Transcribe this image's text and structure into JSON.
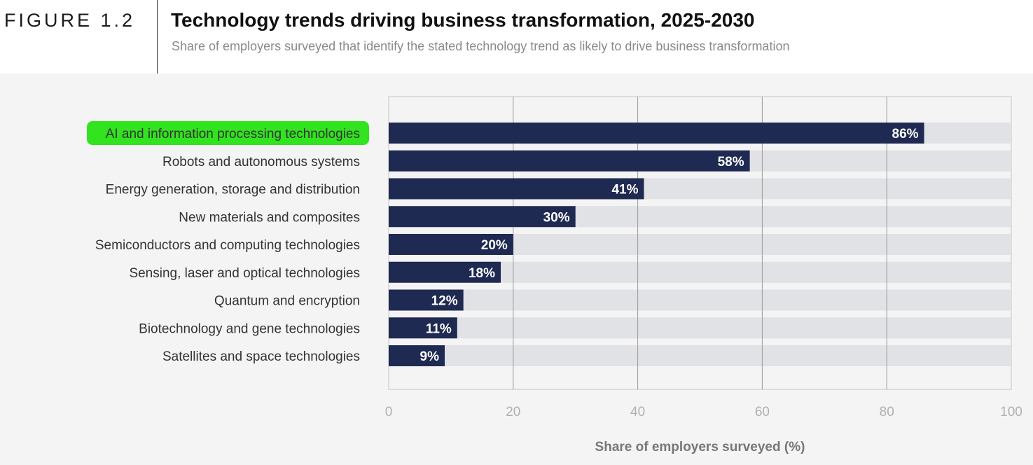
{
  "figure_label": "FIGURE 1.2",
  "chart_data": {
    "type": "bar",
    "orientation": "horizontal",
    "title": "Technology trends driving business transformation, 2025-2030",
    "subtitle": "Share of employers surveyed that identify the stated technology trend as likely to drive business transformation",
    "categories": [
      "AI and information processing technologies",
      "Robots and autonomous systems",
      "Energy generation, storage and distribution",
      "New materials and composites",
      "Semiconductors and computing technologies",
      "Sensing, laser and optical technologies",
      "Quantum and encryption",
      "Biotechnology and gene technologies",
      "Satellites and space technologies"
    ],
    "values": [
      86,
      58,
      41,
      30,
      20,
      18,
      12,
      11,
      9
    ],
    "value_labels": [
      "86%",
      "58%",
      "41%",
      "30%",
      "20%",
      "18%",
      "12%",
      "11%",
      "9%"
    ],
    "highlighted_category": "AI and information processing technologies",
    "xlabel": "Share of employers surveyed (%)",
    "xlim": [
      0,
      100
    ],
    "xticks": [
      0,
      20,
      40,
      60,
      80,
      100
    ],
    "xtick_labels": [
      "0",
      "20",
      "40",
      "60",
      "80",
      "100"
    ],
    "grid": true,
    "legend": "none"
  },
  "colors": {
    "bar": "#1f2a52",
    "track": "#e1e2e5",
    "highlight": "#32e31f",
    "panel_background": "#f4f4f4"
  }
}
